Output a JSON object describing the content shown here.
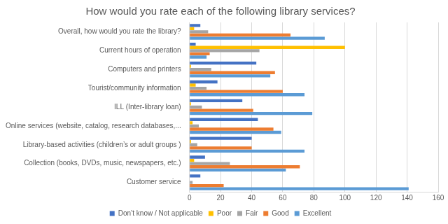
{
  "chart_data": {
    "type": "bar",
    "orientation": "horizontal",
    "title": "How would you rate each of the following library services?",
    "categories": [
      "Overall, how would you rate the library?",
      "Current hours of operation",
      "Computers and printers",
      "Tourist/community information",
      "ILL (Inter-library loan)",
      "Online services (website, catalog, research databases,...",
      "Library-based activities (children’s or adult groups )",
      "Collection (books, DVDs, music, newspapers, etc.)",
      "Customer service"
    ],
    "series": [
      {
        "name": "Don’t know / Not applicable",
        "color": "#4472c4",
        "values": [
          7,
          4,
          43,
          18,
          34,
          44,
          40,
          10,
          7
        ]
      },
      {
        "name": "Poor",
        "color": "#ffc000",
        "values": [
          3,
          100,
          1,
          4,
          1,
          2,
          1,
          3,
          0
        ]
      },
      {
        "name": "Fair",
        "color": "#a5a5a5",
        "values": [
          12,
          45,
          14,
          11,
          8,
          6,
          5,
          26,
          2
        ]
      },
      {
        "name": "Good",
        "color": "#ed7d31",
        "values": [
          65,
          13,
          55,
          60,
          41,
          54,
          40,
          71,
          22
        ]
      },
      {
        "name": "Excellent",
        "color": "#5b9bd5",
        "values": [
          87,
          11,
          52,
          74,
          79,
          59,
          74,
          62,
          141
        ]
      }
    ],
    "xlim": [
      0,
      160
    ],
    "xticks": [
      0,
      20,
      40,
      60,
      80,
      100,
      120,
      140,
      160
    ],
    "grid": true,
    "legend": "bottom"
  }
}
